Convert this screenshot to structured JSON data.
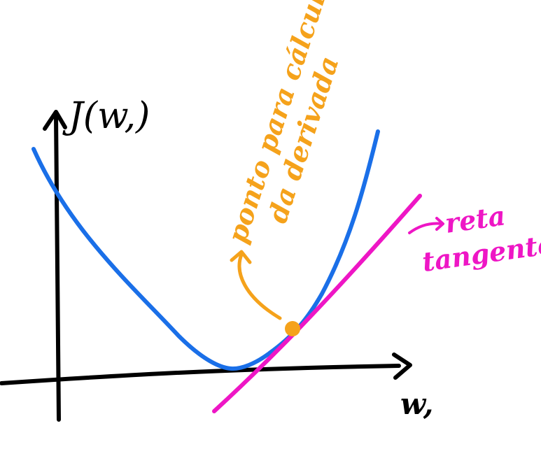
{
  "labels": {
    "y_axis": "J(w,)",
    "x_axis": "w,",
    "point": "ponto para cálculo da derivada",
    "tangent": "reta tangente"
  },
  "colors": {
    "axes": "#000000",
    "curve": "#1a6fe8",
    "tangent": "#ee16c5",
    "point": "#f5a21b"
  }
}
